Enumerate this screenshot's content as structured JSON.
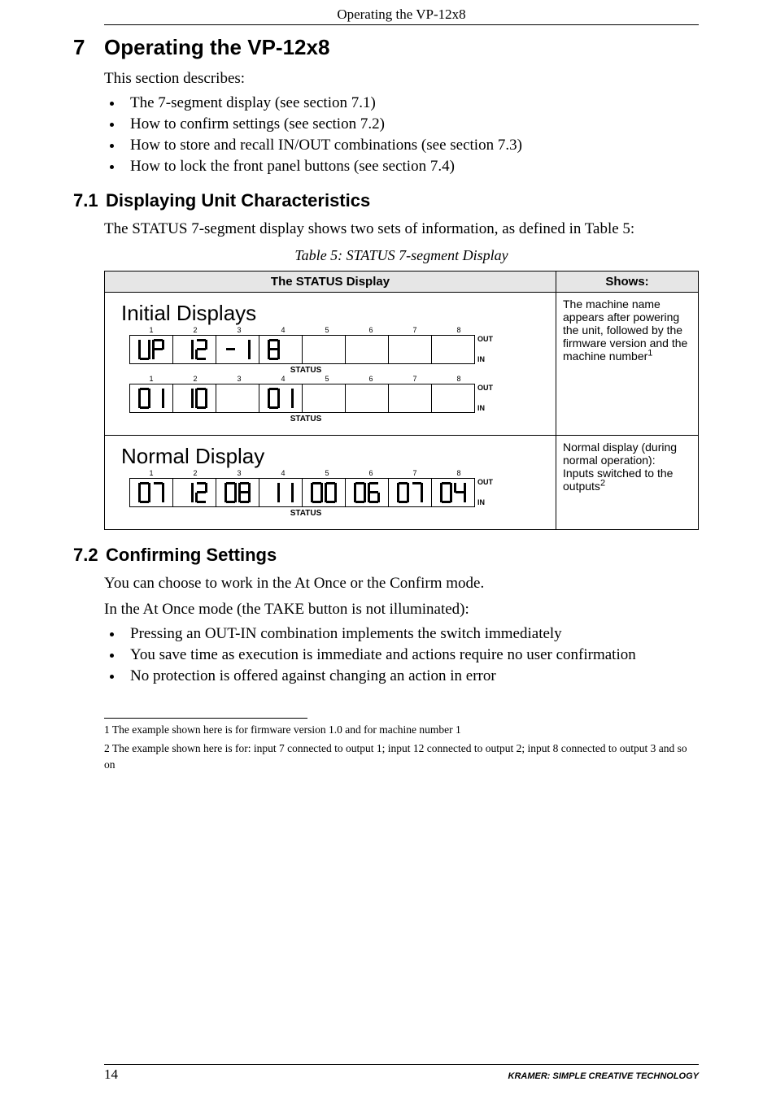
{
  "running_head": "Operating the VP-12x8",
  "section": {
    "num": "7",
    "title": "Operating the VP-12x8"
  },
  "intro": "This section describes:",
  "intro_items": [
    "The 7-segment display (see section 7.1)",
    "How to confirm settings (see section 7.2)",
    "How to store and recall IN/OUT combinations (see section 7.3)",
    "How to lock the front panel buttons (see section 7.4)"
  ],
  "sub71": {
    "num": "7.1",
    "title": "Displaying Unit Characteristics"
  },
  "sub71_body": "The STATUS 7-segment display shows two sets of information, as defined in Table 5:",
  "table5_caption": "Table 5: STATUS 7-segment Display",
  "table5": {
    "headers": [
      "The STATUS Display",
      "Shows:"
    ],
    "col_labels": [
      "1",
      "2",
      "3",
      "4",
      "5",
      "6",
      "7",
      "8"
    ],
    "out_label": "OUT",
    "in_label": "IN",
    "status_label": "STATUS",
    "rows": [
      {
        "title": "Initial Displays",
        "line1_pairs": [
          [
            "V",
            "P"
          ],
          [
            "1",
            "2"
          ],
          [
            "_",
            "1"
          ],
          [
            "8",
            " "
          ],
          [
            " ",
            " "
          ],
          [
            " ",
            " "
          ],
          [
            " ",
            " "
          ],
          [
            " ",
            " "
          ]
        ],
        "line2_pairs": [
          [
            "0",
            "1"
          ],
          [
            "1",
            "0"
          ],
          [
            " ",
            " "
          ],
          [
            "0",
            "1"
          ],
          [
            " ",
            " "
          ],
          [
            " ",
            " "
          ],
          [
            " ",
            " "
          ],
          [
            " ",
            " "
          ]
        ],
        "shows_html": "The machine name appears after powering the unit, followed by the firmware version and the machine number",
        "sup": "1"
      },
      {
        "title": "Normal Display",
        "line_pairs": [
          [
            "0",
            "7"
          ],
          [
            "1",
            "2"
          ],
          [
            "0",
            "8"
          ],
          [
            "1",
            "1"
          ],
          [
            "0",
            "0"
          ],
          [
            "0",
            "6"
          ],
          [
            "0",
            "7"
          ],
          [
            "0",
            "4"
          ]
        ],
        "shows_html": "Normal display (during normal operation):\nInputs switched to the outputs",
        "sup": "2"
      }
    ]
  },
  "sub72": {
    "num": "7.2",
    "title": "Confirming Settings"
  },
  "sub72_body1": "You can choose to work in the At Once or the Confirm mode.",
  "sub72_body2": "In the At Once mode (the TAKE button is not illuminated):",
  "sub72_items": [
    "Pressing an OUT-IN combination implements the switch immediately",
    "You save time as execution is immediate and actions require no user confirmation",
    "No protection is offered against changing an action in error"
  ],
  "footnotes": [
    "1 The example shown here is for firmware version 1.0 and for machine number 1",
    "2 The example shown here is for: input 7 connected to output 1; input 12 connected to output 2; input 8 connected to output 3 and so on"
  ],
  "footer": {
    "page": "14",
    "text": "KRAMER:  SIMPLE CREATIVE TECHNOLOGY"
  },
  "digit_segments": {
    " ": [],
    "_": [
      "g"
    ],
    "0": [
      "a",
      "b",
      "c",
      "d",
      "e",
      "f"
    ],
    "1": [
      "b",
      "c"
    ],
    "2": [
      "a",
      "b",
      "g",
      "e",
      "d"
    ],
    "4": [
      "f",
      "g",
      "b",
      "c"
    ],
    "6": [
      "a",
      "f",
      "g",
      "e",
      "d",
      "c"
    ],
    "7": [
      "a",
      "b",
      "c"
    ],
    "8": [
      "a",
      "b",
      "c",
      "d",
      "e",
      "f",
      "g"
    ],
    "V": [
      "f",
      "e",
      "d",
      "c",
      "b"
    ],
    "P": [
      "a",
      "b",
      "f",
      "g",
      "e"
    ]
  },
  "colors": {
    "bg": "#ffffff",
    "text": "#000000",
    "table_header_bg": "#e6e6e6",
    "border": "#000000"
  }
}
